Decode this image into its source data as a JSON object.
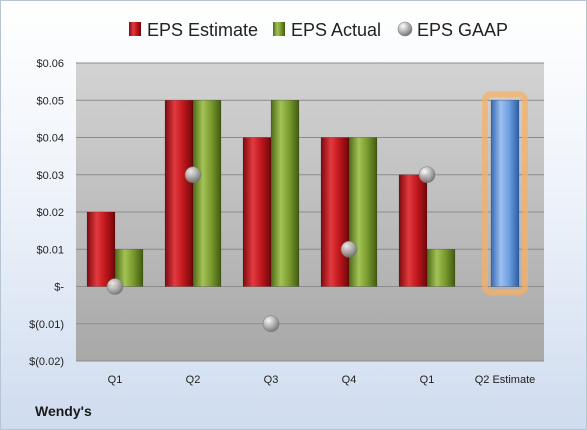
{
  "company": "Wendy's",
  "chart_data": {
    "type": "bar",
    "categories": [
      "Q1",
      "Q2",
      "Q3",
      "Q4",
      "Q1",
      "Q2 Estimate"
    ],
    "series": [
      {
        "name": "EPS Estimate",
        "kind": "bar",
        "color": "#c0171c",
        "values": [
          0.02,
          0.05,
          0.04,
          0.04,
          0.03,
          null
        ]
      },
      {
        "name": "EPS Actual",
        "kind": "bar",
        "color": "#7a9a2e",
        "values": [
          0.01,
          0.05,
          0.05,
          0.04,
          0.01,
          null
        ]
      },
      {
        "name": "EPS GAAP",
        "kind": "marker",
        "color": "#a9a9a9",
        "values": [
          0.0,
          0.03,
          -0.01,
          0.01,
          0.03,
          null
        ]
      }
    ],
    "highlight": {
      "category": "Q2 Estimate",
      "value": 0.05,
      "color": "#5b8fd6",
      "glow": "#f5b066"
    },
    "y_ticks": [
      {
        "value": 0.06,
        "label": "$0.06"
      },
      {
        "value": 0.05,
        "label": "$0.05"
      },
      {
        "value": 0.04,
        "label": "$0.04"
      },
      {
        "value": 0.03,
        "label": "$0.03"
      },
      {
        "value": 0.02,
        "label": "$0.02"
      },
      {
        "value": 0.01,
        "label": "$0.01"
      },
      {
        "value": 0.0,
        "label": "$-"
      },
      {
        "value": -0.01,
        "label": "$(0.01)"
      },
      {
        "value": -0.02,
        "label": "$(0.02)"
      }
    ],
    "ylim": [
      -0.02,
      0.06
    ],
    "grid": true,
    "legend_position": "top"
  }
}
